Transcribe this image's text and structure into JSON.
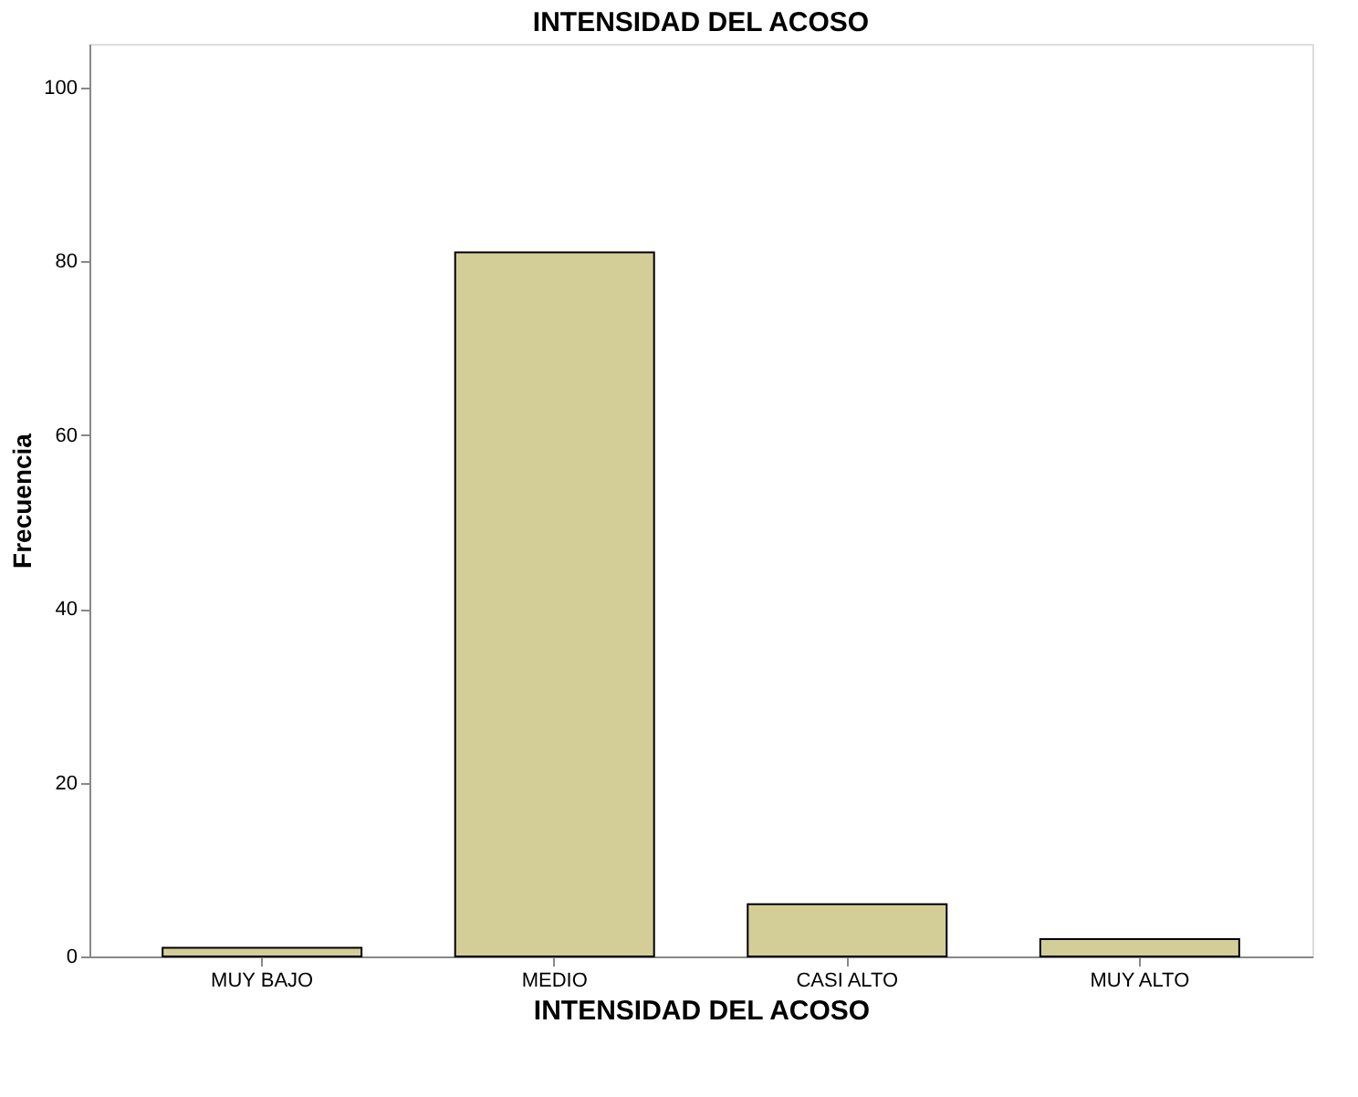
{
  "chart_data": {
    "type": "bar",
    "title": "INTENSIDAD DEL ACOSO",
    "xlabel": "INTENSIDAD DEL ACOSO",
    "ylabel": "Frecuencia",
    "categories": [
      "MUY BAJO",
      "MEDIO",
      "CASI ALTO",
      "MUY ALTO"
    ],
    "values": [
      1,
      81,
      6,
      2
    ],
    "color": "#d3ce98",
    "ylim": [
      0,
      105
    ],
    "yticks": [
      0,
      20,
      40,
      60,
      80,
      100
    ],
    "grid": false
  }
}
